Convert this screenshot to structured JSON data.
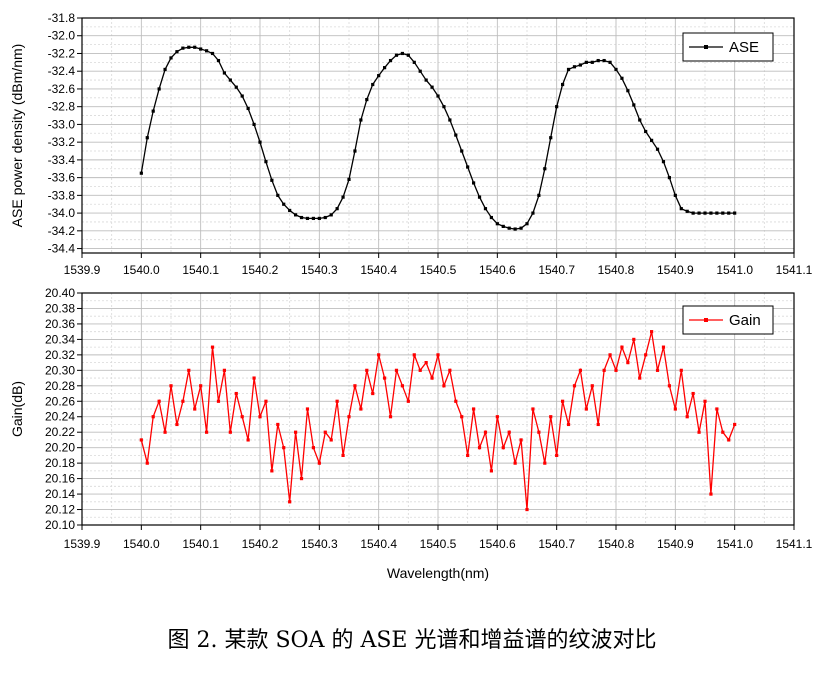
{
  "figure_caption": "图 2. 某款 SOA 的 ASE 光谱和增益谱的纹波对比",
  "chart_data": [
    {
      "type": "line",
      "ylabel": "ASE power density (dBm/nm)",
      "xlabel": "",
      "xlim": [
        1539.9,
        1541.1
      ],
      "ylim": [
        -34.45,
        -31.8
      ],
      "y_reversed": true,
      "x_ticks": [
        "1539.9",
        "1540.0",
        "1540.1",
        "1540.2",
        "1540.3",
        "1540.4",
        "1540.5",
        "1540.6",
        "1540.7",
        "1540.8",
        "1540.9",
        "1541.0",
        "1541.1"
      ],
      "y_ticks": [
        "-31.8",
        "-32.0",
        "-32.2",
        "-32.4",
        "-32.6",
        "-32.8",
        "-33.0",
        "-33.2",
        "-33.4",
        "-33.6",
        "-33.8",
        "-34.0",
        "-34.2",
        "-34.4"
      ],
      "grid": true,
      "legend_position": "top-right",
      "series": [
        {
          "name": "ASE",
          "color": "#000000",
          "x": [
            1540.0,
            1540.01,
            1540.02,
            1540.03,
            1540.04,
            1540.05,
            1540.06,
            1540.07,
            1540.08,
            1540.09,
            1540.1,
            1540.11,
            1540.12,
            1540.13,
            1540.14,
            1540.15,
            1540.16,
            1540.17,
            1540.18,
            1540.19,
            1540.2,
            1540.21,
            1540.22,
            1540.23,
            1540.24,
            1540.25,
            1540.26,
            1540.27,
            1540.28,
            1540.29,
            1540.3,
            1540.31,
            1540.32,
            1540.33,
            1540.34,
            1540.35,
            1540.36,
            1540.37,
            1540.38,
            1540.39,
            1540.4,
            1540.41,
            1540.42,
            1540.43,
            1540.44,
            1540.45,
            1540.46,
            1540.47,
            1540.48,
            1540.49,
            1540.5,
            1540.51,
            1540.52,
            1540.53,
            1540.54,
            1540.55,
            1540.56,
            1540.57,
            1540.58,
            1540.59,
            1540.6,
            1540.61,
            1540.62,
            1540.63,
            1540.64,
            1540.65,
            1540.66,
            1540.67,
            1540.68,
            1540.69,
            1540.7,
            1540.71,
            1540.72,
            1540.73,
            1540.74,
            1540.75,
            1540.76,
            1540.77,
            1540.78,
            1540.79,
            1540.8,
            1540.81,
            1540.82,
            1540.83,
            1540.84,
            1540.85,
            1540.86,
            1540.87,
            1540.88,
            1540.89,
            1540.9,
            1540.91,
            1540.92,
            1540.93,
            1540.94,
            1540.95,
            1540.96,
            1540.97,
            1540.98,
            1540.99,
            1541.0
          ],
          "values": [
            -33.55,
            -33.15,
            -32.85,
            -32.6,
            -32.38,
            -32.25,
            -32.18,
            -32.14,
            -32.13,
            -32.13,
            -32.15,
            -32.17,
            -32.2,
            -32.28,
            -32.42,
            -32.5,
            -32.58,
            -32.68,
            -32.82,
            -33.0,
            -33.2,
            -33.42,
            -33.63,
            -33.8,
            -33.9,
            -33.97,
            -34.02,
            -34.05,
            -34.06,
            -34.06,
            -34.06,
            -34.05,
            -34.02,
            -33.95,
            -33.82,
            -33.62,
            -33.3,
            -32.95,
            -32.72,
            -32.55,
            -32.45,
            -32.36,
            -32.28,
            -32.22,
            -32.2,
            -32.22,
            -32.3,
            -32.4,
            -32.5,
            -32.58,
            -32.68,
            -32.8,
            -32.95,
            -33.12,
            -33.3,
            -33.48,
            -33.66,
            -33.82,
            -33.95,
            -34.05,
            -34.12,
            -34.15,
            -34.17,
            -34.18,
            -34.17,
            -34.12,
            -34.0,
            -33.8,
            -33.5,
            -33.15,
            -32.8,
            -32.55,
            -32.38,
            -32.35,
            -32.33,
            -32.3,
            -32.3,
            -32.28,
            -32.28,
            -32.3,
            -32.38,
            -32.48,
            -32.62,
            -32.78,
            -32.95,
            -33.08,
            -33.18,
            -33.28,
            -33.42,
            -33.6,
            -33.8,
            -33.95,
            -33.98,
            -34.0,
            -34.0,
            -34.0,
            -34.0,
            -34.0,
            -34.0,
            -34.0,
            -34.0
          ]
        }
      ]
    },
    {
      "type": "line",
      "ylabel": "Gain(dB)",
      "xlabel": "Wavelength(nm)",
      "xlim": [
        1539.9,
        1541.1
      ],
      "ylim": [
        20.1,
        20.4
      ],
      "x_ticks": [
        "1539.9",
        "1540.0",
        "1540.1",
        "1540.2",
        "1540.3",
        "1540.4",
        "1540.5",
        "1540.6",
        "1540.7",
        "1540.8",
        "1540.9",
        "1541.0",
        "1541.1"
      ],
      "y_ticks": [
        "20.40",
        "20.38",
        "20.36",
        "20.34",
        "20.32",
        "20.30",
        "20.28",
        "20.26",
        "20.24",
        "20.22",
        "20.20",
        "20.18",
        "20.16",
        "20.14",
        "20.12",
        "20.10"
      ],
      "grid": true,
      "legend_position": "top-right",
      "series": [
        {
          "name": "Gain",
          "color": "#ff0000",
          "x": [
            1540.0,
            1540.01,
            1540.02,
            1540.03,
            1540.04,
            1540.05,
            1540.06,
            1540.07,
            1540.08,
            1540.09,
            1540.1,
            1540.11,
            1540.12,
            1540.13,
            1540.14,
            1540.15,
            1540.16,
            1540.17,
            1540.18,
            1540.19,
            1540.2,
            1540.21,
            1540.22,
            1540.23,
            1540.24,
            1540.25,
            1540.26,
            1540.27,
            1540.28,
            1540.29,
            1540.3,
            1540.31,
            1540.32,
            1540.33,
            1540.34,
            1540.35,
            1540.36,
            1540.37,
            1540.38,
            1540.39,
            1540.4,
            1540.41,
            1540.42,
            1540.43,
            1540.44,
            1540.45,
            1540.46,
            1540.47,
            1540.48,
            1540.49,
            1540.5,
            1540.51,
            1540.52,
            1540.53,
            1540.54,
            1540.55,
            1540.56,
            1540.57,
            1540.58,
            1540.59,
            1540.6,
            1540.61,
            1540.62,
            1540.63,
            1540.64,
            1540.65,
            1540.66,
            1540.67,
            1540.68,
            1540.69,
            1540.7,
            1540.71,
            1540.72,
            1540.73,
            1540.74,
            1540.75,
            1540.76,
            1540.77,
            1540.78,
            1540.79,
            1540.8,
            1540.81,
            1540.82,
            1540.83,
            1540.84,
            1540.85,
            1540.86,
            1540.87,
            1540.88,
            1540.89,
            1540.9,
            1540.91,
            1540.92,
            1540.93,
            1540.94,
            1540.95,
            1540.96,
            1540.97,
            1540.98,
            1540.99,
            1541.0
          ],
          "values": [
            20.21,
            20.18,
            20.24,
            20.26,
            20.22,
            20.28,
            20.23,
            20.26,
            20.3,
            20.25,
            20.28,
            20.22,
            20.33,
            20.26,
            20.3,
            20.22,
            20.27,
            20.24,
            20.21,
            20.29,
            20.24,
            20.26,
            20.17,
            20.23,
            20.2,
            20.13,
            20.22,
            20.16,
            20.25,
            20.2,
            20.18,
            20.22,
            20.21,
            20.26,
            20.19,
            20.24,
            20.28,
            20.25,
            20.3,
            20.27,
            20.32,
            20.29,
            20.24,
            20.3,
            20.28,
            20.26,
            20.32,
            20.3,
            20.31,
            20.29,
            20.32,
            20.28,
            20.3,
            20.26,
            20.24,
            20.19,
            20.25,
            20.2,
            20.22,
            20.17,
            20.24,
            20.2,
            20.22,
            20.18,
            20.21,
            20.12,
            20.25,
            20.22,
            20.18,
            20.24,
            20.19,
            20.26,
            20.23,
            20.28,
            20.3,
            20.25,
            20.28,
            20.23,
            20.3,
            20.32,
            20.3,
            20.33,
            20.31,
            20.34,
            20.29,
            20.32,
            20.35,
            20.3,
            20.33,
            20.28,
            20.25,
            20.3,
            20.24,
            20.27,
            20.22,
            20.26,
            20.14,
            20.25,
            20.22,
            20.21,
            20.23
          ]
        }
      ]
    }
  ]
}
